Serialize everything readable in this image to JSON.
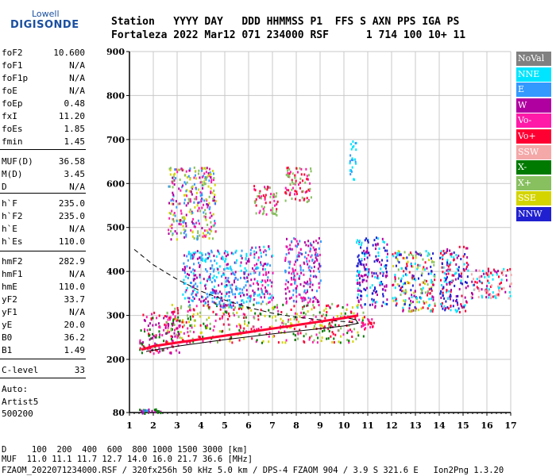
{
  "logo": {
    "top": "Lowell",
    "main": "DIGISONDE"
  },
  "header": {
    "row1": "Station   YYYY DAY   DDD HHMMSS P1  FFS S AXN PPS IGA PS",
    "row2": "Fortaleza 2022 Mar12 071 234000 RSF      1 714 100 10+ 11"
  },
  "params": [
    {
      "name": "foF2",
      "value": "10.600"
    },
    {
      "name": "foF1",
      "value": "N/A"
    },
    {
      "name": "foF1p",
      "value": "N/A"
    },
    {
      "name": "foE",
      "value": "N/A"
    },
    {
      "name": "foEp",
      "value": "0.48"
    },
    {
      "name": "fxI",
      "value": "11.20"
    },
    {
      "name": "foEs",
      "value": "1.85"
    },
    {
      "name": "fmin",
      "value": "1.45"
    },
    {
      "name": "MUF(D)",
      "value": "36.58"
    },
    {
      "name": "M(D)",
      "value": "3.45"
    },
    {
      "name": "D",
      "value": "N/A"
    },
    {
      "name": "h`F",
      "value": "235.0"
    },
    {
      "name": "h`F2",
      "value": "235.0"
    },
    {
      "name": "h`E",
      "value": "N/A"
    },
    {
      "name": "h`Es",
      "value": "110.0"
    },
    {
      "name": "hmF2",
      "value": "282.9"
    },
    {
      "name": "hmF1",
      "value": "N/A"
    },
    {
      "name": "hmE",
      "value": "110.0"
    },
    {
      "name": "yF2",
      "value": "33.7"
    },
    {
      "name": "yF1",
      "value": "N/A"
    },
    {
      "name": "yE",
      "value": "20.0"
    },
    {
      "name": "B0",
      "value": "36.2"
    },
    {
      "name": "B1",
      "value": "1.49"
    },
    {
      "name": "C-level",
      "value": "33"
    }
  ],
  "auto": [
    "Auto:",
    "Artist5",
    "500200"
  ],
  "legend": [
    {
      "label": "NoVal",
      "color": "#808080"
    },
    {
      "label": "NNE",
      "color": "#00e5ff"
    },
    {
      "label": "E",
      "color": "#3399ff"
    },
    {
      "label": "W",
      "color": "#b000a0"
    },
    {
      "label": "Vo-",
      "color": "#ff1aa8"
    },
    {
      "label": "Vo+",
      "color": "#ff0033"
    },
    {
      "label": "SSW",
      "color": "#f4a8a8"
    },
    {
      "label": "X-",
      "color": "#007a00"
    },
    {
      "label": "X+",
      "color": "#88c060"
    },
    {
      "label": "SSE",
      "color": "#d4d400"
    },
    {
      "label": "NNW",
      "color": "#2020d0"
    }
  ],
  "footer": {
    "line1": "D     100  200  400  600  800 1000 1500 3000 [km]",
    "line2": "MUF  11.0 11.1 11.7 12.7 14.0 16.0 21.7 36.6 [MHz]",
    "line3": "FZAOM_2022071234000.RSF / 320fx256h 50 kHz 5.0 km / DPS-4 FZAOM 904 / 3.9 S 321.6 E   Ion2Png 1.3.20"
  },
  "chart_data": {
    "type": "scatter",
    "xlim": [
      1,
      17
    ],
    "ylim": [
      80,
      900
    ],
    "x_ticks": [
      1,
      2,
      3,
      4,
      5,
      6,
      7,
      8,
      9,
      10,
      11,
      12,
      13,
      14,
      15,
      16,
      17
    ],
    "y_ticks": [
      80,
      200,
      300,
      400,
      500,
      600,
      700,
      800,
      900
    ],
    "grid": true,
    "legend_placement": "right",
    "trace_o_mode": [
      [
        1.5,
        222
      ],
      [
        2,
        230
      ],
      [
        3,
        238
      ],
      [
        4,
        246
      ],
      [
        5,
        254
      ],
      [
        6,
        262
      ],
      [
        7,
        270
      ],
      [
        8,
        278
      ],
      [
        9,
        286
      ],
      [
        10,
        294
      ],
      [
        10.6,
        300
      ]
    ],
    "trace_profile_solid": [
      [
        1.7,
        218
      ],
      [
        3,
        230
      ],
      [
        5,
        245
      ],
      [
        7,
        258
      ],
      [
        8,
        264
      ],
      [
        9,
        270
      ],
      [
        10,
        276
      ],
      [
        10.6,
        282
      ],
      [
        10.5,
        290
      ],
      [
        10.0,
        296
      ]
    ],
    "trace_dashed": [
      [
        1.2,
        450
      ],
      [
        2,
        415
      ],
      [
        3,
        382
      ],
      [
        4,
        355
      ],
      [
        5,
        335
      ],
      [
        6,
        318
      ],
      [
        7,
        305
      ],
      [
        8,
        296
      ],
      [
        9,
        290
      ],
      [
        10,
        286
      ],
      [
        10.6,
        282
      ]
    ],
    "clusters": [
      {
        "x": [
          1.4,
          3.1
        ],
        "y": [
          215,
          310
        ],
        "colors": [
          "#ff0033",
          "#b000a0",
          "#ff1aa8",
          "#007a00"
        ]
      },
      {
        "x": [
          2.5,
          10.8
        ],
        "y": [
          240,
          330
        ],
        "colors": [
          "#ff0033",
          "#88c060",
          "#d4d400",
          "#007a00",
          "#ff1aa8"
        ]
      },
      {
        "x": [
          2.6,
          4.6
        ],
        "y": [
          475,
          640
        ],
        "colors": [
          "#d4d400",
          "#b000a0",
          "#ff1aa8",
          "#88c060",
          "#3399ff"
        ]
      },
      {
        "x": [
          3.2,
          6.0
        ],
        "y": [
          320,
          450
        ],
        "colors": [
          "#3399ff",
          "#00e5ff",
          "#b000a0"
        ]
      },
      {
        "x": [
          6.0,
          7.0
        ],
        "y": [
          330,
          460
        ],
        "colors": [
          "#b000a0",
          "#3399ff",
          "#ff1aa8",
          "#00e5ff"
        ]
      },
      {
        "x": [
          7.5,
          9.0
        ],
        "y": [
          330,
          480
        ],
        "colors": [
          "#b000a0",
          "#ff1aa8",
          "#3399ff"
        ]
      },
      {
        "x": [
          6.2,
          7.2
        ],
        "y": [
          530,
          600
        ],
        "colors": [
          "#ff1aa8",
          "#ff0033",
          "#88c060"
        ]
      },
      {
        "x": [
          7.5,
          8.6
        ],
        "y": [
          560,
          640
        ],
        "colors": [
          "#ff1aa8",
          "#ff0033",
          "#88c060"
        ]
      },
      {
        "x": [
          10.7,
          11.3
        ],
        "y": [
          270,
          300
        ],
        "colors": [
          "#ff0033",
          "#ff1aa8"
        ]
      },
      {
        "x": [
          10.5,
          11.8
        ],
        "y": [
          320,
          480
        ],
        "colors": [
          "#2020d0",
          "#00e5ff",
          "#b000a0"
        ]
      },
      {
        "x": [
          12.0,
          13.8
        ],
        "y": [
          310,
          450
        ],
        "colors": [
          "#00e5ff",
          "#ff0033",
          "#b000a0",
          "#d4d400",
          "#2020d0",
          "#88c060"
        ]
      },
      {
        "x": [
          14.0,
          15.2
        ],
        "y": [
          310,
          460
        ],
        "colors": [
          "#00e5ff",
          "#2020d0",
          "#ff0033",
          "#b000a0"
        ]
      },
      {
        "x": [
          15.3,
          17.0
        ],
        "y": [
          340,
          410
        ],
        "colors": [
          "#ff0033",
          "#f4a8a8",
          "#b000a0",
          "#00e5ff"
        ]
      },
      {
        "x": [
          10.2,
          10.5
        ],
        "y": [
          610,
          700
        ],
        "colors": [
          "#00e5ff",
          "#3399ff"
        ]
      },
      {
        "x": [
          1.4,
          2.3
        ],
        "y": [
          80,
          90
        ],
        "colors": [
          "#b000a0",
          "#007a00",
          "#3399ff"
        ]
      }
    ]
  }
}
